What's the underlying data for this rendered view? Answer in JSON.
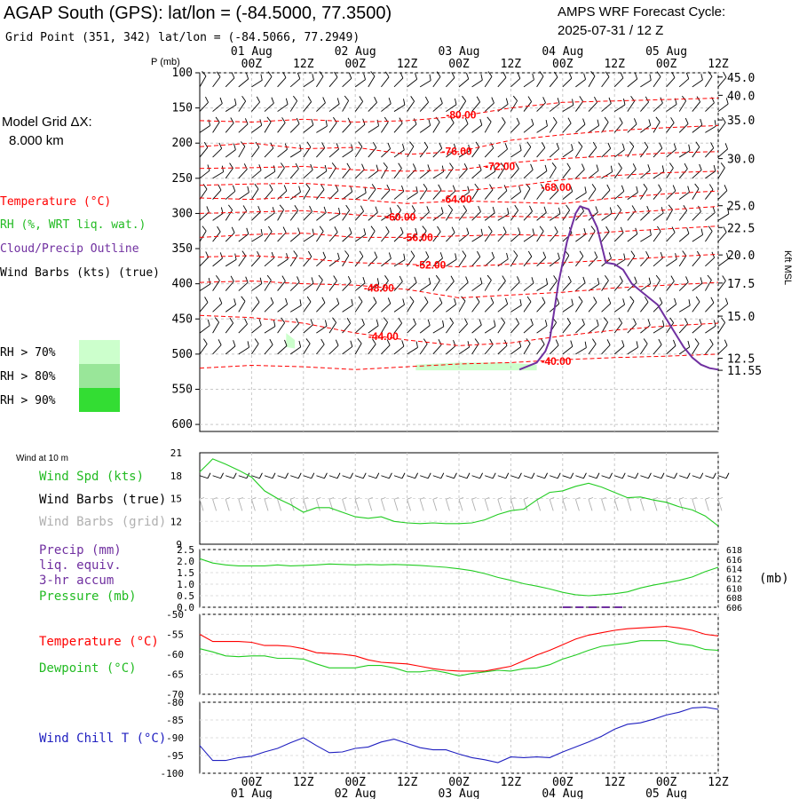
{
  "header": {
    "station_title": "AGAP South (GPS):  lat/lon = (-84.5000, 77.3500)",
    "grid_point": "Grid Point (351, 342) lat/lon = (-84.5066, 77.2949)",
    "cycle_label": "AMPS WRF Forecast Cycle:",
    "cycle_value": "2025-07-31 / 12  Z"
  },
  "model_grid": {
    "label": "Model Grid ΔX:",
    "value": "8.000 km"
  },
  "legend": {
    "temperature": "Temperature (°C)",
    "rh": "RH (%, WRT liq. wat.)",
    "cloud": "Cloud/Precip Outline",
    "wind": "Wind Barbs (kts) (true)",
    "rh_levels": [
      {
        "label": "RH > 70%",
        "color": "#ccffcc"
      },
      {
        "label": "RH > 80%",
        "color": "#99e699"
      },
      {
        "label": "RH > 90%",
        "color": "#33dd33"
      }
    ]
  },
  "colors": {
    "temperature": "#ff0000",
    "cloud": "#7030a0",
    "green": "#22cc22",
    "wind_grid": "#b0b0b0",
    "chill": "#2020c0"
  },
  "time_axis": {
    "hour_ticks": [
      "00Z",
      "12Z",
      "00Z",
      "12Z",
      "00Z",
      "12Z",
      "00Z",
      "12Z",
      "00Z",
      "12Z"
    ],
    "hour_ticks_x": [
      12,
      24,
      36,
      48,
      60,
      72,
      84,
      96,
      108,
      120
    ],
    "day_labels": [
      "01 Aug",
      "02 Aug",
      "03 Aug",
      "04 Aug",
      "05 Aug"
    ],
    "day_labels_x": [
      12,
      36,
      60,
      84,
      108
    ],
    "range_hours": [
      0,
      120
    ]
  },
  "chart_data": [
    {
      "type": "line",
      "panel": "upper-air",
      "ylabel": "P (mb)",
      "ylabel_right": "Kft MSL",
      "ylim": [
        100,
        610
      ],
      "pressure_ticks": [
        100,
        150,
        200,
        250,
        300,
        350,
        400,
        450,
        500,
        550,
        600
      ],
      "height_ticks": [
        {
          "label": "45.0",
          "p": 106
        },
        {
          "label": "40.0",
          "p": 132
        },
        {
          "label": "35.0",
          "p": 167
        },
        {
          "label": "30.0",
          "p": 222
        },
        {
          "label": "25.0",
          "p": 289
        },
        {
          "label": "22.5",
          "p": 320
        },
        {
          "label": "20.0",
          "p": 359
        },
        {
          "label": "17.5",
          "p": 399
        },
        {
          "label": "15.0",
          "p": 446
        },
        {
          "label": "12.5",
          "p": 506
        },
        {
          "label": "11.55",
          "p": 523
        }
      ],
      "temperature_contours": [
        {
          "label": "-80.00",
          "label_x": 57,
          "label_p": 160,
          "x": [
            0,
            12,
            24,
            36,
            48,
            60,
            72,
            84,
            96,
            108,
            120
          ],
          "p": [
            168,
            170,
            166,
            170,
            168,
            162,
            150,
            142,
            140,
            138,
            136
          ]
        },
        {
          "label": "-76.00",
          "label_x": 56,
          "label_p": 212,
          "x": [
            0,
            12,
            24,
            36,
            48,
            60,
            72,
            84,
            96,
            108,
            120
          ],
          "p": [
            205,
            200,
            208,
            206,
            216,
            212,
            196,
            188,
            182,
            178,
            175
          ]
        },
        {
          "label": "-72.00",
          "label_x": 66,
          "label_p": 233,
          "x": [
            0,
            12,
            24,
            36,
            48,
            60,
            72,
            84,
            96,
            108,
            120
          ],
          "p": [
            236,
            235,
            233,
            238,
            240,
            238,
            228,
            222,
            218,
            214,
            212
          ]
        },
        {
          "label": "-68.00",
          "label_x": 79,
          "label_p": 263,
          "x": [
            0,
            12,
            24,
            36,
            48,
            60,
            72,
            84,
            96,
            108,
            120
          ],
          "p": [
            260,
            258,
            257,
            262,
            268,
            268,
            262,
            252,
            246,
            242,
            240
          ]
        },
        {
          "label": "-64.00",
          "label_x": 56,
          "label_p": 280,
          "x": [
            0,
            12,
            24,
            36,
            48,
            60,
            72,
            84,
            96,
            108,
            120
          ],
          "p": [
            278,
            280,
            276,
            280,
            286,
            282,
            284,
            286,
            278,
            272,
            268
          ]
        },
        {
          "label": "-60.00",
          "label_x": 43,
          "label_p": 305,
          "x": [
            0,
            12,
            24,
            36,
            48,
            60,
            72,
            84,
            96,
            108,
            120
          ],
          "p": [
            300,
            298,
            296,
            302,
            306,
            306,
            304,
            306,
            300,
            295,
            290
          ]
        },
        {
          "label": "-56.00",
          "label_x": 47,
          "label_p": 334,
          "x": [
            0,
            12,
            24,
            36,
            48,
            60,
            72,
            84,
            96,
            108,
            120
          ],
          "p": [
            334,
            330,
            328,
            334,
            334,
            332,
            330,
            332,
            326,
            322,
            318
          ]
        },
        {
          "label": "-52.00",
          "label_x": 50,
          "label_p": 373,
          "x": [
            0,
            12,
            24,
            36,
            48,
            60,
            72,
            84,
            96,
            108,
            120
          ],
          "p": [
            362,
            360,
            364,
            370,
            372,
            376,
            372,
            370,
            366,
            362,
            358
          ]
        },
        {
          "label": "-48.00",
          "label_x": 38,
          "label_p": 406,
          "x": [
            0,
            12,
            24,
            36,
            48,
            60,
            72,
            84,
            96,
            108,
            120
          ],
          "p": [
            398,
            396,
            400,
            402,
            408,
            420,
            416,
            412,
            406,
            402,
            398
          ]
        },
        {
          "label": "-44.00",
          "label_x": 39,
          "label_p": 475,
          "x": [
            0,
            12,
            24,
            36,
            48,
            60,
            72,
            84,
            96,
            108,
            120
          ],
          "p": [
            445,
            448,
            456,
            470,
            480,
            488,
            484,
            474,
            466,
            460,
            456
          ]
        },
        {
          "label": "-40.00",
          "label_x": 79,
          "label_p": 510,
          "x": [
            0,
            12,
            24,
            36,
            48,
            60,
            72,
            84,
            96,
            108,
            120
          ],
          "p": [
            520,
            516,
            518,
            522,
            518,
            514,
            512,
            508,
            505,
            503,
            500
          ]
        }
      ],
      "cloud_outline": {
        "x": [
          74,
          78,
          80,
          81,
          82,
          83,
          84,
          85,
          86,
          87,
          88,
          90,
          92,
          94,
          96,
          98,
          100,
          102,
          104,
          106,
          108,
          110,
          112,
          114,
          116,
          118,
          120
        ],
        "p": [
          522,
          512,
          496,
          480,
          440,
          400,
          370,
          340,
          320,
          300,
          290,
          294,
          320,
          370,
          372,
          380,
          400,
          410,
          420,
          430,
          450,
          470,
          490,
          505,
          515,
          520,
          522
        ]
      },
      "rh_shading": [
        {
          "level": 70,
          "x": [
            50,
            60,
            70,
            78
          ],
          "p_top": [
            515,
            512,
            512,
            515
          ],
          "p_bottom": [
            523,
            523,
            523,
            523
          ]
        },
        {
          "level": 70,
          "x": [
            20,
            22
          ],
          "p_top": [
            470,
            480
          ],
          "p_bottom": [
            490,
            492
          ]
        }
      ],
      "wind_rows_p": [
        120,
        155,
        185,
        220,
        250,
        280,
        310,
        340,
        375,
        410,
        440,
        470,
        500
      ],
      "wind_columns_h": [
        0,
        3,
        6,
        9,
        12,
        15,
        18,
        21,
        24,
        27,
        30,
        33,
        36,
        39,
        42,
        45,
        48,
        51,
        54,
        57,
        60,
        63,
        66,
        69,
        72,
        75,
        78,
        81,
        84,
        87,
        90,
        93,
        96,
        99,
        102,
        105,
        108,
        111,
        114,
        117,
        120
      ]
    },
    {
      "type": "line",
      "panel": "wind-10m",
      "title": "Wind at 10 m",
      "series_label": "Wind Spd (kts)",
      "barbs_true_label": "Wind Barbs (true)",
      "barbs_grid_label": "Wind Barbs (grid)",
      "ylim": [
        9,
        21
      ],
      "y_ticks": [
        9,
        12,
        15,
        18,
        21
      ],
      "x": [
        0,
        2,
        3,
        6,
        9,
        12,
        15,
        18,
        21,
        24,
        27,
        30,
        33,
        36,
        39,
        42,
        45,
        48,
        51,
        54,
        57,
        60,
        63,
        66,
        69,
        72,
        75,
        78,
        81,
        84,
        87,
        90,
        93,
        96,
        99,
        102,
        105,
        108,
        111,
        114,
        117,
        120
      ],
      "values": [
        18.5,
        19.6,
        20.2,
        19.5,
        18.7,
        17.8,
        16.0,
        15.0,
        14.2,
        13.2,
        13.8,
        13.8,
        13.2,
        12.6,
        12.4,
        12.6,
        12.0,
        11.8,
        11.7,
        11.8,
        11.7,
        11.7,
        11.8,
        12.2,
        12.9,
        13.4,
        13.6,
        14.8,
        15.8,
        16.0,
        16.6,
        17.0,
        16.5,
        15.8,
        15.1,
        15.2,
        14.8,
        14.5,
        13.9,
        13.5,
        12.7,
        11.4
      ]
    },
    {
      "type": "line",
      "panel": "precip-pressure",
      "precip_label": "Precip (mm)",
      "precip_sub1": "liq. equiv.",
      "precip_sub2": "3-hr accum",
      "pressure_label": "Pressure (mb)",
      "unit_right": "(mb)",
      "precip_ylim": [
        0,
        2.5
      ],
      "precip_ticks": [
        "0.0",
        "0.5",
        "1.0",
        "1.5",
        "2.0",
        "2.5"
      ],
      "pressure_ylim": [
        606,
        618
      ],
      "pressure_ticks": [
        "606",
        "608",
        "610",
        "612",
        "614",
        "616",
        "618"
      ],
      "x": [
        0,
        3,
        6,
        9,
        12,
        15,
        18,
        21,
        24,
        27,
        30,
        33,
        36,
        39,
        42,
        45,
        48,
        51,
        54,
        57,
        60,
        63,
        66,
        69,
        72,
        75,
        78,
        81,
        84,
        87,
        90,
        93,
        96,
        99,
        102,
        105,
        108,
        111,
        114,
        117,
        120
      ],
      "pressure": [
        616.1,
        615.2,
        614.8,
        614.6,
        614.6,
        614.6,
        614.8,
        614.6,
        614.7,
        614.8,
        615.0,
        614.9,
        614.8,
        614.9,
        614.8,
        614.9,
        614.8,
        614.7,
        614.5,
        614.3,
        614.0,
        613.6,
        613.0,
        612.2,
        611.6,
        610.9,
        610.4,
        609.8,
        609.1,
        608.6,
        608.4,
        608.6,
        608.8,
        609.2,
        610.0,
        610.6,
        611.1,
        611.6,
        612.3,
        613.4,
        614.3
      ],
      "precip": [
        0.05,
        0.05,
        0.05,
        0.05,
        0.05,
        0.05,
        0.05,
        0.05,
        0.05,
        0.05,
        0.05,
        0.05,
        0.05,
        0.05,
        0.05,
        0.05,
        0.05,
        0.05,
        0.05,
        0.05,
        0.05,
        0.05,
        0.05,
        0.05,
        0.05,
        0.05,
        0.05,
        0.05,
        0.05,
        0.05,
        0.05,
        0.05,
        0.05,
        0.05,
        0.05,
        0.05,
        0.05,
        0.05,
        0.05,
        0.05,
        0.05
      ]
    },
    {
      "type": "line",
      "panel": "temperature-dewpoint",
      "series": [
        {
          "name": "Temperature (°C)",
          "x": [
            0,
            3,
            6,
            9,
            12,
            15,
            18,
            21,
            24,
            27,
            30,
            33,
            36,
            39,
            42,
            45,
            48,
            51,
            54,
            57,
            60,
            63,
            66,
            69,
            72,
            75,
            78,
            81,
            84,
            87,
            90,
            93,
            96,
            99,
            102,
            105,
            108,
            111,
            114,
            117,
            120
          ],
          "values": [
            -55.0,
            -56.8,
            -56.8,
            -56.8,
            -57.0,
            -57.8,
            -57.8,
            -58.0,
            -58.6,
            -59.6,
            -59.8,
            -60.0,
            -60.4,
            -61.4,
            -62.0,
            -62.2,
            -62.4,
            -63.0,
            -63.6,
            -64.0,
            -64.2,
            -64.2,
            -64.2,
            -63.6,
            -63.0,
            -61.6,
            -60.2,
            -59.0,
            -57.6,
            -56.2,
            -55.2,
            -54.6,
            -54.0,
            -53.6,
            -53.4,
            -53.2,
            -53.0,
            -53.4,
            -54.0,
            -55.0,
            -55.4
          ]
        },
        {
          "name": "Dewpoint (°C)",
          "x": [
            0,
            3,
            6,
            9,
            12,
            15,
            18,
            21,
            24,
            27,
            30,
            33,
            36,
            39,
            42,
            45,
            48,
            51,
            54,
            57,
            60,
            63,
            66,
            69,
            72,
            75,
            78,
            81,
            84,
            87,
            90,
            93,
            96,
            99,
            102,
            105,
            108,
            111,
            114,
            117,
            120
          ],
          "values": [
            -58.6,
            -59.4,
            -60.4,
            -60.6,
            -60.4,
            -60.4,
            -61.0,
            -61.0,
            -61.2,
            -62.4,
            -63.4,
            -63.4,
            -63.4,
            -62.8,
            -62.8,
            -63.4,
            -64.4,
            -64.4,
            -64.0,
            -64.6,
            -65.4,
            -64.8,
            -64.4,
            -64.0,
            -64.2,
            -63.6,
            -63.4,
            -62.6,
            -61.2,
            -60.2,
            -59.0,
            -58.0,
            -57.6,
            -57.2,
            -56.6,
            -56.6,
            -56.6,
            -57.4,
            -57.8,
            -58.8,
            -59.0
          ]
        }
      ],
      "ylim": [
        -70,
        -50
      ],
      "y_ticks": [
        "-50",
        "-55",
        "-60",
        "-65",
        "-70"
      ]
    },
    {
      "type": "line",
      "panel": "wind-chill",
      "series_label": "Wind Chill T (°C)",
      "ylim": [
        -100,
        -80
      ],
      "y_ticks": [
        "-80",
        "-85",
        "-90",
        "-95",
        "-100"
      ],
      "x": [
        0,
        3,
        6,
        9,
        12,
        15,
        18,
        21,
        24,
        27,
        30,
        33,
        36,
        39,
        42,
        45,
        48,
        51,
        54,
        57,
        60,
        63,
        66,
        69,
        72,
        75,
        78,
        81,
        84,
        87,
        90,
        93,
        96,
        99,
        102,
        105,
        108,
        111,
        114,
        117,
        120
      ],
      "values": [
        -92.2,
        -96.4,
        -96.4,
        -95.6,
        -95.2,
        -94.0,
        -93.0,
        -91.4,
        -90.0,
        -92.2,
        -94.2,
        -94.0,
        -93.0,
        -92.6,
        -91.2,
        -90.4,
        -91.6,
        -92.8,
        -93.4,
        -93.4,
        -94.6,
        -95.6,
        -96.2,
        -97.0,
        -95.4,
        -95.6,
        -95.4,
        -95.6,
        -94.0,
        -92.6,
        -91.2,
        -89.6,
        -87.6,
        -86.2,
        -85.8,
        -84.8,
        -83.6,
        -82.8,
        -81.6,
        -81.4,
        -82.0
      ]
    }
  ]
}
